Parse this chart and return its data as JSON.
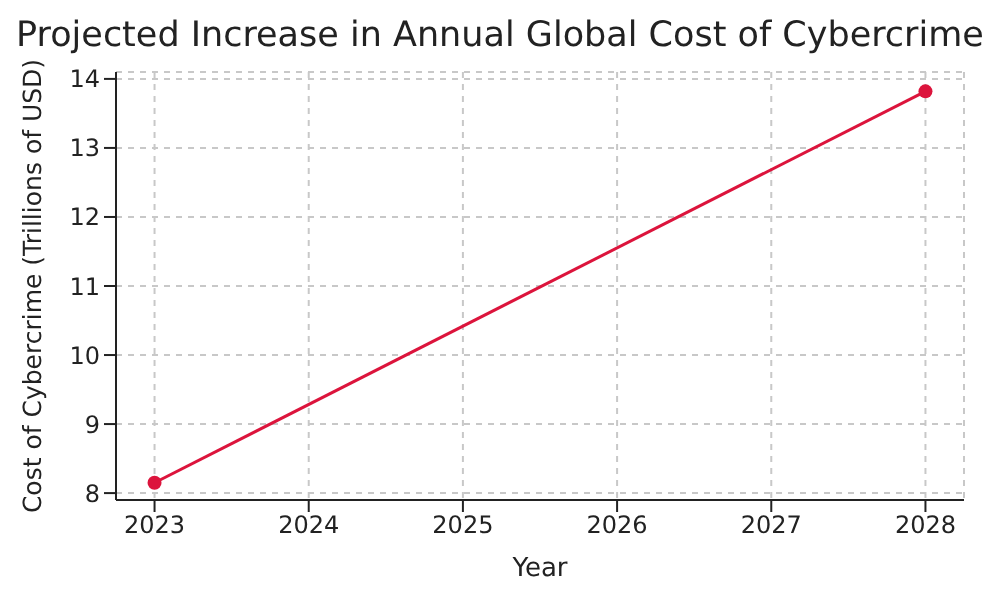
{
  "chart_data": {
    "type": "line",
    "title": "Projected Increase in Annual Global Cost of Cybercrime",
    "xlabel": "Year",
    "ylabel": "Cost of Cybercrime (Trillions of USD)",
    "x": [
      2023,
      2028
    ],
    "series": [
      {
        "color": "#dc143c",
        "values": [
          8.15,
          13.82
        ]
      }
    ],
    "xlim": [
      2022.75,
      2028.25
    ],
    "xticks": [
      2023,
      2024,
      2025,
      2026,
      2027,
      2028
    ],
    "ylim": [
      7.9,
      14.1
    ],
    "yticks": [
      8,
      9,
      10,
      11,
      12,
      13,
      14
    ],
    "grid": true,
    "marker": "circle",
    "line_style": "solid"
  }
}
